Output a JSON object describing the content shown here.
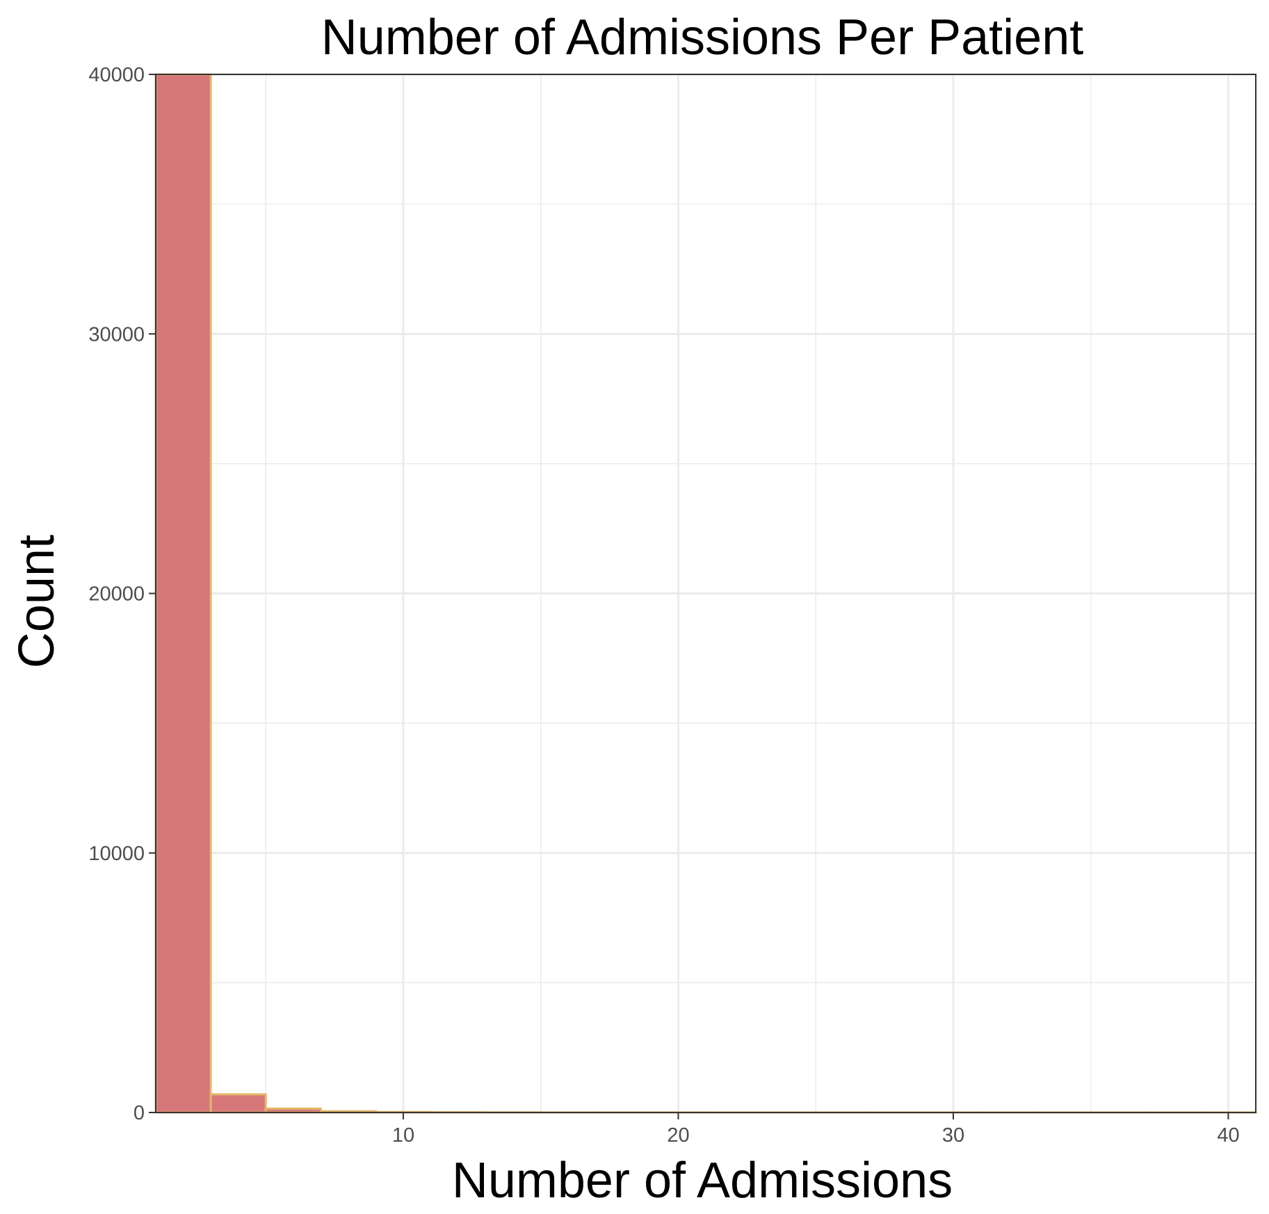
{
  "chart_data": {
    "type": "bar",
    "title": "Number of Admissions Per Patient",
    "xlabel": "Number of Admissions",
    "ylabel": "Count",
    "xlim": [
      1,
      41
    ],
    "ylim": [
      0,
      40000
    ],
    "x_ticks": [
      10,
      20,
      30,
      40
    ],
    "y_ticks": [
      0,
      10000,
      20000,
      30000,
      40000
    ],
    "bins": [
      {
        "x0": 1,
        "x1": 3,
        "count": 40000
      },
      {
        "x0": 3,
        "x1": 5,
        "count": 700
      },
      {
        "x0": 5,
        "x1": 7,
        "count": 150
      },
      {
        "x0": 7,
        "x1": 9,
        "count": 50
      },
      {
        "x0": 9,
        "x1": 11,
        "count": 20
      },
      {
        "x0": 11,
        "x1": 13,
        "count": 10
      },
      {
        "x0": 13,
        "x1": 15,
        "count": 5
      },
      {
        "x0": 15,
        "x1": 17,
        "count": 3
      },
      {
        "x0": 17,
        "x1": 19,
        "count": 2
      },
      {
        "x0": 19,
        "x1": 21,
        "count": 2
      },
      {
        "x0": 21,
        "x1": 23,
        "count": 1
      },
      {
        "x0": 23,
        "x1": 25,
        "count": 1
      },
      {
        "x0": 25,
        "x1": 27,
        "count": 1
      },
      {
        "x0": 27,
        "x1": 29,
        "count": 1
      },
      {
        "x0": 29,
        "x1": 31,
        "count": 1
      },
      {
        "x0": 31,
        "x1": 33,
        "count": 1
      },
      {
        "x0": 33,
        "x1": 35,
        "count": 1
      },
      {
        "x0": 35,
        "x1": 37,
        "count": 1
      },
      {
        "x0": 37,
        "x1": 39,
        "count": 1
      },
      {
        "x0": 39,
        "x1": 41,
        "count": 1
      }
    ],
    "grid": true,
    "colors": {
      "bar_fill": "#d7777a",
      "bar_stroke": "#e2b86a",
      "grid": "#ebebeb",
      "panel_border": "#333333"
    }
  }
}
